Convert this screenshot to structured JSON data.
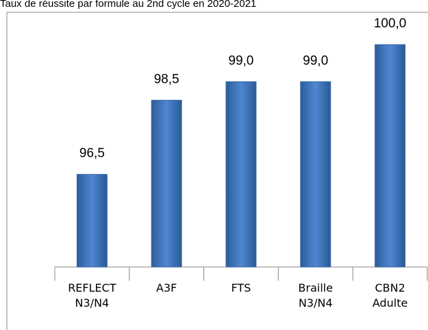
{
  "chart_data": {
    "type": "bar",
    "title": "Taux de réussite par formule au 2nd cycle en 2020-2021",
    "categories": [
      "REFLECT N3/N4",
      "A3F",
      "FTS",
      "Braille N3/N4",
      "CBN2 Adulte"
    ],
    "values": [
      96.5,
      98.5,
      99.0,
      99.0,
      100.0
    ],
    "value_labels": [
      "96,5",
      "98,5",
      "99,0",
      "99,0",
      "100,0"
    ],
    "color": "#4f81bd",
    "ylim": [
      94,
      101
    ]
  }
}
